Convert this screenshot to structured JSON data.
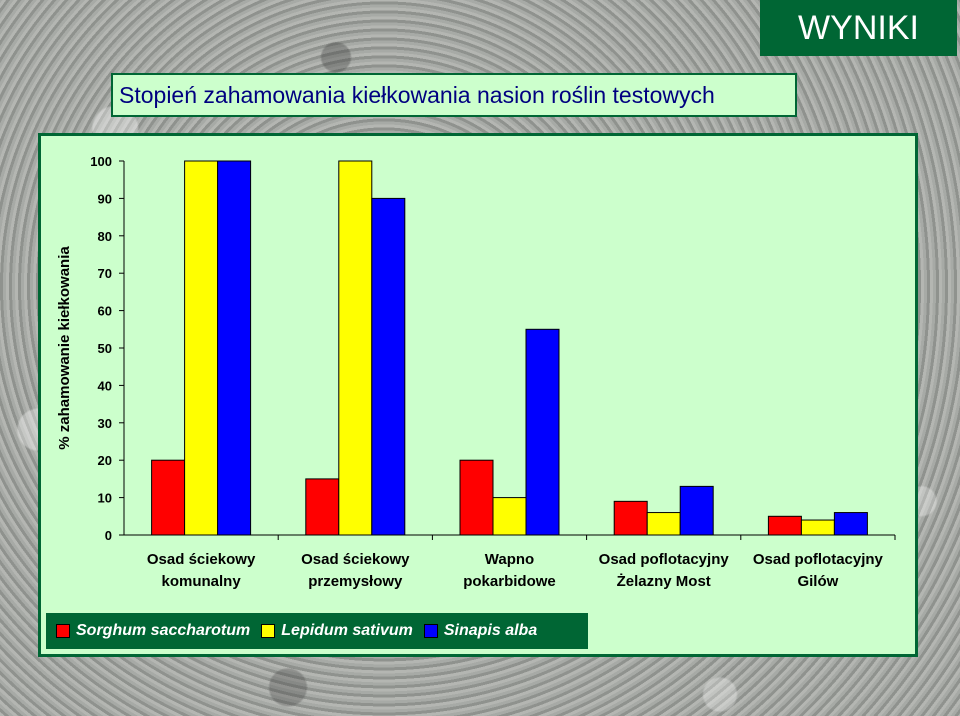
{
  "badge": {
    "label": "WYNIKI"
  },
  "slide_title": "Stopień zahamowania kiełkowania nasion roślin testowych",
  "colors": {
    "background_green": "#ccffcc",
    "frame_green": "#006634",
    "series_red": "#ff0000",
    "series_yellow": "#ffff00",
    "series_blue": "#0000ff"
  },
  "chart_data": {
    "type": "bar",
    "title": "",
    "xlabel": "",
    "ylabel": "% zahamowanie kiełkowania",
    "ylim": [
      0,
      100
    ],
    "yticks": [
      0,
      10,
      20,
      30,
      40,
      50,
      60,
      70,
      80,
      90,
      100
    ],
    "grid": false,
    "legend_position": "bottom-left",
    "categories": [
      [
        "Osad ściekowy",
        "komunalny"
      ],
      [
        "Osad ściekowy",
        "przemysłowy"
      ],
      [
        "Wapno",
        "pokarbidowe"
      ],
      [
        "Osad poflotacyjny",
        "Żelazny Most"
      ],
      [
        "Osad poflotacyjny",
        "Gilów"
      ]
    ],
    "series": [
      {
        "name": "Sorghum saccharotum",
        "color": "#ff0000",
        "values": [
          20,
          15,
          20,
          9,
          5
        ]
      },
      {
        "name": "Lepidum sativum",
        "color": "#ffff00",
        "values": [
          100,
          100,
          10,
          6,
          4
        ]
      },
      {
        "name": "Sinapis alba",
        "color": "#0000ff",
        "values": [
          100,
          90,
          55,
          13,
          6
        ]
      }
    ]
  }
}
